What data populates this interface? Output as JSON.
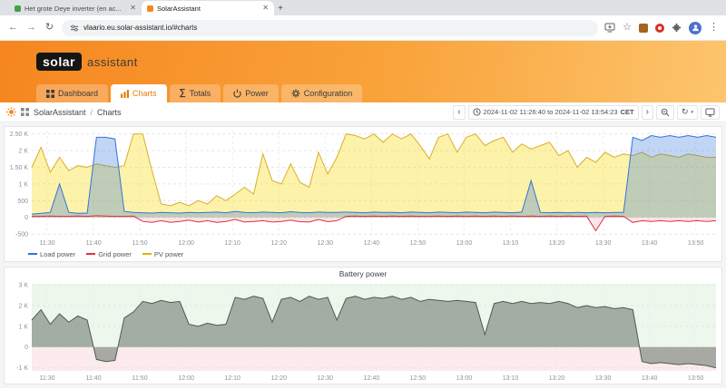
{
  "browser": {
    "tab_inactive": "Het grote Deye inverter (en ac...",
    "tab_active": "SolarAssistant",
    "url": "vlaario.eu.solar-assistant.io/#charts"
  },
  "header": {
    "logo_primary": "solar",
    "logo_secondary": "assistant"
  },
  "nav": {
    "items": [
      {
        "label": "Dashboard"
      },
      {
        "label": "Charts"
      },
      {
        "label": "Totals"
      },
      {
        "label": "Power"
      },
      {
        "label": "Configuration"
      }
    ]
  },
  "breadcrumb": {
    "app": "SolarAssistant",
    "separator": "/",
    "page": "Charts"
  },
  "timebar": {
    "range": "2024-11-02 11:26:40 to 2024-11-02 13:54:23",
    "timezone": "CET"
  },
  "chart_data": [
    {
      "type": "area",
      "title": "",
      "x_start": "11:26:40",
      "x_end": "13:54:23",
      "ylim": [
        -550,
        2600
      ],
      "y_ticks": [
        {
          "label": "2.50 K",
          "v": 2500
        },
        {
          "label": "2 K",
          "v": 2000
        },
        {
          "label": "1.50 K",
          "v": 1500
        },
        {
          "label": "1 K",
          "v": 1000
        },
        {
          "label": "500",
          "v": 500
        },
        {
          "label": "0",
          "v": 0
        },
        {
          "label": "-500",
          "v": -500
        }
      ],
      "x_ticks": [
        {
          "label": "11:30",
          "f": 0.0226
        },
        {
          "label": "11:40",
          "f": 0.0903
        },
        {
          "label": "11:50",
          "f": 0.158
        },
        {
          "label": "12:00",
          "f": 0.2257
        },
        {
          "label": "12:10",
          "f": 0.2934
        },
        {
          "label": "12:20",
          "f": 0.3611
        },
        {
          "label": "12:30",
          "f": 0.4288
        },
        {
          "label": "12:40",
          "f": 0.4965
        },
        {
          "label": "12:50",
          "f": 0.5642
        },
        {
          "label": "13:00",
          "f": 0.6319
        },
        {
          "label": "13:10",
          "f": 0.6996
        },
        {
          "label": "13:20",
          "f": 0.7673
        },
        {
          "label": "13:30",
          "f": 0.835
        },
        {
          "label": "13:40",
          "f": 0.9027
        },
        {
          "label": "13:50",
          "f": 0.9704
        }
      ],
      "series": [
        {
          "name": "PV power",
          "color": "#d9af27",
          "fill": "rgba(250,222,42,0.40)",
          "values": [
            1500,
            2100,
            1350,
            1800,
            1400,
            1550,
            1500,
            1600,
            1550,
            1500,
            1550,
            2500,
            2500,
            1400,
            400,
            350,
            450,
            350,
            500,
            400,
            650,
            500,
            700,
            900,
            700,
            1900,
            1100,
            1000,
            1600,
            1050,
            900,
            1950,
            1300,
            1800,
            2500,
            2450,
            2350,
            2500,
            2250,
            2500,
            2350,
            2500,
            2150,
            1750,
            2400,
            2500,
            1950,
            2400,
            2500,
            2150,
            2300,
            2400,
            1950,
            2200,
            2050,
            2150,
            2250,
            1850,
            2000,
            1500,
            1800,
            1650,
            1950,
            1800,
            1900,
            1850,
            1950,
            1800,
            1900,
            1850,
            1800,
            1900,
            1850,
            1800,
            1800
          ]
        },
        {
          "name": "Load power",
          "color": "#3274d9",
          "fill": "rgba(50,116,217,0.30)",
          "values": [
            100,
            120,
            150,
            1000,
            150,
            120,
            130,
            2400,
            2400,
            2350,
            180,
            150,
            140,
            130,
            150,
            140,
            130,
            150,
            140,
            150,
            160,
            140,
            180,
            150,
            140,
            160,
            150,
            140,
            170,
            150,
            140,
            160,
            150,
            150,
            160,
            150,
            140,
            160,
            150,
            150,
            140,
            160,
            150,
            140,
            160,
            150,
            140,
            160,
            150,
            140,
            160,
            150,
            140,
            160,
            1100,
            150,
            140,
            150,
            140,
            150,
            140,
            150,
            140,
            150,
            150,
            2400,
            2300,
            2450,
            2400,
            2450,
            2400,
            2450,
            2400,
            2450,
            2400
          ]
        },
        {
          "name": "Grid power",
          "color": "#e02f44",
          "fill": "rgba(224,47,68,0.12)",
          "values": [
            30,
            30,
            40,
            30,
            30,
            40,
            30,
            50,
            40,
            30,
            30,
            40,
            -120,
            -150,
            -100,
            -150,
            -120,
            -80,
            -140,
            -100,
            -150,
            -120,
            -60,
            -140,
            -120,
            -100,
            -140,
            -120,
            -80,
            -130,
            -140,
            -60,
            -130,
            -100,
            30,
            40,
            30,
            40,
            30,
            40,
            30,
            40,
            30,
            30,
            40,
            30,
            40,
            30,
            40,
            30,
            40,
            30,
            40,
            30,
            40,
            30,
            40,
            30,
            40,
            30,
            40,
            -400,
            30,
            40,
            30,
            -150,
            -100,
            -120,
            -100,
            -120,
            -100,
            -120,
            -100,
            -120,
            -100
          ]
        }
      ],
      "legend": [
        {
          "label": "Load power",
          "color": "#3274d9"
        },
        {
          "label": "Grid power",
          "color": "#e02f44"
        },
        {
          "label": "PV power",
          "color": "#e0b400"
        }
      ]
    },
    {
      "type": "area",
      "title": "Battery power",
      "x_start": "11:26:40",
      "x_end": "13:54:23",
      "ylim": [
        -1150,
        3050
      ],
      "thresholds": [
        {
          "from": 0,
          "to": 3050,
          "color": "rgba(115,191,105,0.13)"
        },
        {
          "from": -1150,
          "to": 0,
          "color": "rgba(224,47,68,0.10)"
        }
      ],
      "y_ticks": [
        {
          "label": "3 K",
          "v": 3000
        },
        {
          "label": "2 K",
          "v": 2000
        },
        {
          "label": "1 K",
          "v": 1000
        },
        {
          "label": "0",
          "v": 0
        },
        {
          "label": "-1 K",
          "v": -1000
        }
      ],
      "x_ticks": [
        {
          "label": "11:30",
          "f": 0.0226
        },
        {
          "label": "11:40",
          "f": 0.0903
        },
        {
          "label": "11:50",
          "f": 0.158
        },
        {
          "label": "12:00",
          "f": 0.2257
        },
        {
          "label": "12:10",
          "f": 0.2934
        },
        {
          "label": "12:20",
          "f": 0.3611
        },
        {
          "label": "12:30",
          "f": 0.4288
        },
        {
          "label": "12:40",
          "f": 0.4965
        },
        {
          "label": "12:50",
          "f": 0.5642
        },
        {
          "label": "13:00",
          "f": 0.6319
        },
        {
          "label": "13:10",
          "f": 0.6996
        },
        {
          "label": "13:20",
          "f": 0.7673
        },
        {
          "label": "13:30",
          "f": 0.835
        },
        {
          "label": "13:40",
          "f": 0.9027
        },
        {
          "label": "13:50",
          "f": 0.9704
        }
      ],
      "series": [
        {
          "name": "Battery power",
          "color": "#4e5a52",
          "fill": "rgba(100,115,105,0.55)",
          "values": [
            1300,
            1800,
            1100,
            1600,
            1200,
            1500,
            1300,
            -600,
            -700,
            -650,
            1400,
            1700,
            2200,
            2100,
            2250,
            2150,
            2200,
            1100,
            1000,
            1150,
            1050,
            1100,
            2400,
            2300,
            2450,
            2350,
            1200,
            2300,
            2400,
            2200,
            2450,
            2300,
            2400,
            1300,
            2350,
            2450,
            2300,
            2400,
            2350,
            2450,
            2300,
            2400,
            2200,
            2300,
            2250,
            2200,
            2250,
            2200,
            2150,
            600,
            2100,
            2200,
            2100,
            2200,
            2100,
            2150,
            2100,
            2200,
            2100,
            1900,
            2000,
            1900,
            1950,
            1850,
            1900,
            1800,
            -700,
            -800,
            -750,
            -800,
            -850,
            -800,
            -850,
            -900,
            -1000
          ]
        }
      ],
      "legend": []
    }
  ]
}
